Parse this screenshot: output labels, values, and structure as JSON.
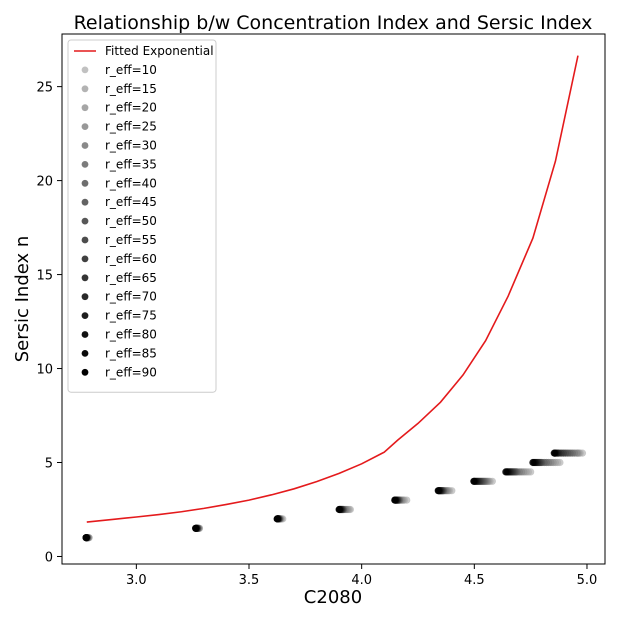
{
  "chart_data": {
    "type": "scatter",
    "title": "Relationship b/w Concentration Index and Sersic Index",
    "xlabel": "C2080",
    "ylabel": "Sersic Index n",
    "xlim": [
      2.67,
      5.08
    ],
    "ylim": [
      -0.4,
      27.8
    ],
    "xticks": [
      3.0,
      3.5,
      4.0,
      4.5,
      5.0
    ],
    "xtick_labels": [
      "3.0",
      "3.5",
      "4.0",
      "4.5",
      "5.0"
    ],
    "yticks": [
      0,
      5,
      10,
      15,
      20,
      25
    ],
    "ytick_labels": [
      "0",
      "5",
      "10",
      "15",
      "20",
      "25"
    ],
    "grid": false,
    "legend_position": "top-left",
    "line_series": {
      "name": "Fitted Exponential",
      "color": "#e41a1c",
      "x": [
        2.78,
        2.9,
        3.0,
        3.1,
        3.2,
        3.3,
        3.4,
        3.5,
        3.6,
        3.7,
        3.8,
        3.9,
        4.0,
        4.1,
        4.16,
        4.25,
        4.35,
        4.45,
        4.55,
        4.65,
        4.76,
        4.86,
        4.96
      ],
      "y": [
        1.83,
        1.98,
        2.1,
        2.23,
        2.38,
        2.56,
        2.77,
        3.0,
        3.28,
        3.6,
        3.98,
        4.42,
        4.93,
        5.55,
        6.19,
        7.08,
        8.21,
        9.66,
        11.48,
        13.85,
        16.94,
        21.03,
        26.65
      ]
    },
    "scatter_series": [
      {
        "name": "r_eff=10",
        "shade": 0.16,
        "y_values": [
          1.0,
          1.5,
          2.0,
          2.5,
          3.0,
          3.5,
          4.0,
          4.5,
          5.0,
          5.5
        ],
        "x_values": [
          2.79,
          3.28,
          3.65,
          3.95,
          4.2,
          4.4,
          4.58,
          4.75,
          4.88,
          4.98
        ]
      },
      {
        "name": "r_eff=15",
        "shade": 0.22,
        "y_values": [
          1.0,
          1.5,
          2.0,
          2.5,
          3.0,
          3.5,
          4.0,
          4.5,
          5.0,
          5.5
        ],
        "x_values": [
          2.79,
          3.28,
          3.645,
          3.945,
          4.19,
          4.39,
          4.57,
          4.74,
          4.87,
          4.97
        ]
      },
      {
        "name": "r_eff=20",
        "shade": 0.28,
        "y_values": [
          1.0,
          1.5,
          2.0,
          2.5,
          3.0,
          3.5,
          4.0,
          4.5,
          5.0,
          5.5
        ],
        "x_values": [
          2.788,
          3.278,
          3.642,
          3.94,
          4.185,
          4.385,
          4.565,
          4.73,
          4.86,
          4.965
        ]
      },
      {
        "name": "r_eff=25",
        "shade": 0.34,
        "y_values": [
          1.0,
          1.5,
          2.0,
          2.5,
          3.0,
          3.5,
          4.0,
          4.5,
          5.0,
          5.5
        ],
        "x_values": [
          2.786,
          3.276,
          3.64,
          3.935,
          4.18,
          4.38,
          4.56,
          4.72,
          4.85,
          4.96
        ]
      },
      {
        "name": "r_eff=30",
        "shade": 0.4,
        "y_values": [
          1.0,
          1.5,
          2.0,
          2.5,
          3.0,
          3.5,
          4.0,
          4.5,
          5.0,
          5.5
        ],
        "x_values": [
          2.785,
          3.275,
          3.638,
          3.93,
          4.175,
          4.375,
          4.555,
          4.71,
          4.84,
          4.955
        ]
      },
      {
        "name": "r_eff=35",
        "shade": 0.46,
        "y_values": [
          1.0,
          1.5,
          2.0,
          2.5,
          3.0,
          3.5,
          4.0,
          4.5,
          5.0,
          5.5
        ],
        "x_values": [
          2.784,
          3.274,
          3.636,
          3.925,
          4.17,
          4.37,
          4.55,
          4.7,
          4.83,
          4.945
        ]
      },
      {
        "name": "r_eff=40",
        "shade": 0.52,
        "y_values": [
          1.0,
          1.5,
          2.0,
          2.5,
          3.0,
          3.5,
          4.0,
          4.5,
          5.0,
          5.5
        ],
        "x_values": [
          2.783,
          3.273,
          3.635,
          3.92,
          4.168,
          4.365,
          4.545,
          4.69,
          4.82,
          4.935
        ]
      },
      {
        "name": "r_eff=45",
        "shade": 0.57,
        "y_values": [
          1.0,
          1.5,
          2.0,
          2.5,
          3.0,
          3.5,
          4.0,
          4.5,
          5.0,
          5.5
        ],
        "x_values": [
          2.782,
          3.272,
          3.634,
          3.918,
          4.165,
          4.362,
          4.54,
          4.685,
          4.81,
          4.925
        ]
      },
      {
        "name": "r_eff=50",
        "shade": 0.62,
        "y_values": [
          1.0,
          1.5,
          2.0,
          2.5,
          3.0,
          3.5,
          4.0,
          4.5,
          5.0,
          5.5
        ],
        "x_values": [
          2.781,
          3.271,
          3.633,
          3.916,
          4.163,
          4.36,
          4.535,
          4.68,
          4.8,
          4.915
        ]
      },
      {
        "name": "r_eff=55",
        "shade": 0.67,
        "y_values": [
          1.0,
          1.5,
          2.0,
          2.5,
          3.0,
          3.5,
          4.0,
          4.5,
          5.0,
          5.5
        ],
        "x_values": [
          2.78,
          3.27,
          3.632,
          3.914,
          4.161,
          4.357,
          4.53,
          4.675,
          4.795,
          4.905
        ]
      },
      {
        "name": "r_eff=60",
        "shade": 0.72,
        "y_values": [
          1.0,
          1.5,
          2.0,
          2.5,
          3.0,
          3.5,
          4.0,
          4.5,
          5.0,
          5.5
        ],
        "x_values": [
          2.78,
          3.269,
          3.631,
          3.912,
          4.159,
          4.355,
          4.525,
          4.67,
          4.79,
          4.895
        ]
      },
      {
        "name": "r_eff=65",
        "shade": 0.77,
        "y_values": [
          1.0,
          1.5,
          2.0,
          2.5,
          3.0,
          3.5,
          4.0,
          4.5,
          5.0,
          5.5
        ],
        "x_values": [
          2.779,
          3.268,
          3.63,
          3.91,
          4.157,
          4.352,
          4.52,
          4.665,
          4.785,
          4.885
        ]
      },
      {
        "name": "r_eff=70",
        "shade": 0.82,
        "y_values": [
          1.0,
          1.5,
          2.0,
          2.5,
          3.0,
          3.5,
          4.0,
          4.5,
          5.0,
          5.5
        ],
        "x_values": [
          2.779,
          3.267,
          3.629,
          3.908,
          4.155,
          4.35,
          4.515,
          4.66,
          4.78,
          4.875
        ]
      },
      {
        "name": "r_eff=75",
        "shade": 0.87,
        "y_values": [
          1.0,
          1.5,
          2.0,
          2.5,
          3.0,
          3.5,
          4.0,
          4.5,
          5.0,
          5.5
        ],
        "x_values": [
          2.778,
          3.266,
          3.628,
          3.906,
          4.153,
          4.347,
          4.51,
          4.655,
          4.775,
          4.868
        ]
      },
      {
        "name": "r_eff=80",
        "shade": 0.92,
        "y_values": [
          1.0,
          1.5,
          2.0,
          2.5,
          3.0,
          3.5,
          4.0,
          4.5,
          5.0,
          5.5
        ],
        "x_values": [
          2.778,
          3.265,
          3.627,
          3.904,
          4.151,
          4.345,
          4.505,
          4.65,
          4.77,
          4.862
        ]
      },
      {
        "name": "r_eff=85",
        "shade": 0.96,
        "y_values": [
          1.0,
          1.5,
          2.0,
          2.5,
          3.0,
          3.5,
          4.0,
          4.5,
          5.0,
          5.5
        ],
        "x_values": [
          2.777,
          3.264,
          3.626,
          3.902,
          4.149,
          4.342,
          4.5,
          4.645,
          4.765,
          4.858
        ]
      },
      {
        "name": "r_eff=90",
        "shade": 1.0,
        "y_values": [
          1.0,
          1.5,
          2.0,
          2.5,
          3.0,
          3.5,
          4.0,
          4.5,
          5.0,
          5.5
        ],
        "x_values": [
          2.777,
          3.263,
          3.625,
          3.9,
          4.147,
          4.34,
          4.498,
          4.64,
          4.76,
          4.855
        ]
      }
    ]
  }
}
